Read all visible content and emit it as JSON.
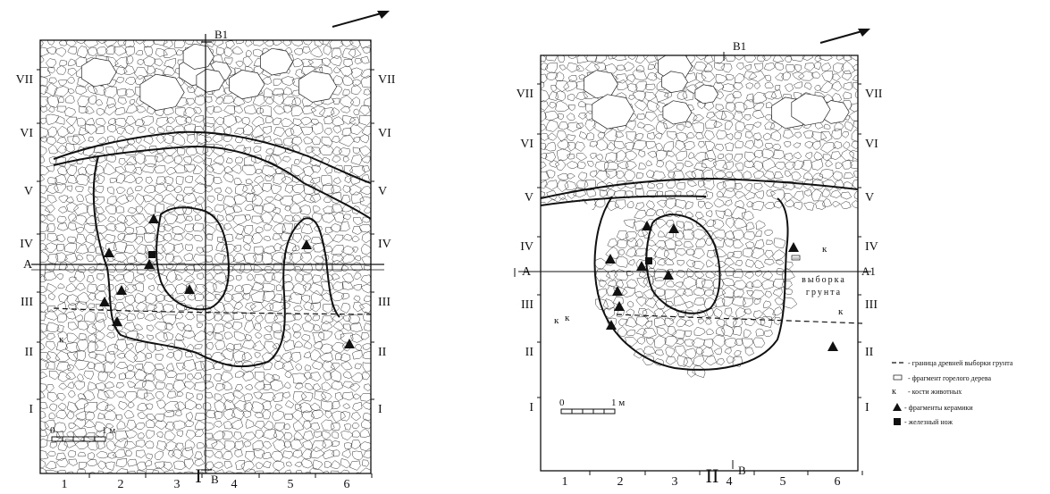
{
  "panels": [
    {
      "id": "I",
      "label": "I",
      "rows_left": [
        "VII",
        "VI",
        "V",
        "IV",
        "III",
        "II",
        "I"
      ],
      "rows_right": [
        "VII",
        "VI",
        "V",
        "IV",
        "III",
        "II",
        "I"
      ],
      "cols": [
        "1",
        "2",
        "3",
        "4",
        "5",
        "6"
      ],
      "section_marks": {
        "top": "B1",
        "bottom": "B",
        "left": "A"
      },
      "scale": {
        "zero": "0",
        "end": "1 м"
      },
      "bone_marks": [
        "к"
      ]
    },
    {
      "id": "II",
      "label": "II",
      "rows_left": [
        "VII",
        "VI",
        "V",
        "IV",
        "III",
        "II",
        "I"
      ],
      "rows_right": [
        "VII",
        "VI",
        "V",
        "IV",
        "III",
        "II",
        "I"
      ],
      "cols": [
        "1",
        "2",
        "3",
        "4",
        "5",
        "6"
      ],
      "section_marks": {
        "top": "B1",
        "bottom": "B",
        "left": "A",
        "right": "A1"
      },
      "scale": {
        "zero": "0",
        "end": "1 м"
      },
      "bone_marks": [
        "к",
        "к",
        "к",
        "к"
      ],
      "area_label_1": "выборка",
      "area_label_2": "грунта"
    }
  ],
  "legend": [
    {
      "symbol": "dash",
      "text": "- граница древней выборки грунта"
    },
    {
      "symbol": "wood",
      "text": "- фрагмент горелого дерева"
    },
    {
      "symbol": "к",
      "text": "- кости животных"
    },
    {
      "symbol": "triangle",
      "text": "- фрагменты керамики"
    },
    {
      "symbol": "square",
      "text": "- железный нож"
    }
  ]
}
